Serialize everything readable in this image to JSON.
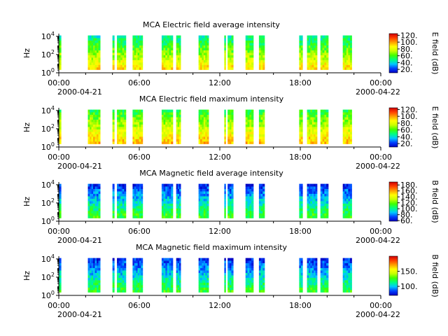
{
  "chart_data": [
    {
      "type": "heatmap",
      "title": "MCA  Electric field average intensity",
      "ylabel": "Hz",
      "y_scale": "log",
      "ylim": [
        1,
        20000
      ],
      "y_ticks": [
        "10^0",
        "10^2",
        "10^4"
      ],
      "x_ticks": [
        "00:00",
        "06:00",
        "12:00",
        "18:00",
        "00:00"
      ],
      "x_start_label": "2000-04-21",
      "x_end_label": "2000-04-22",
      "xlim": [
        "2000-04-21T00:00",
        "2000-04-22T00:00"
      ],
      "colorbar": {
        "label": "E field (dB)",
        "range": [
          10,
          125
        ],
        "ticks": [
          "20.",
          "40.",
          "60.",
          "80.",
          "100.",
          "120."
        ],
        "colors": [
          "#0000c0",
          "#0040ff",
          "#00c8ff",
          "#00ff80",
          "#40ff00",
          "#c8ff00",
          "#ffff00",
          "#ffa000",
          "#ff4000",
          "#d00000"
        ]
      },
      "data_intervals": [
        [
          "00:00",
          "00:10"
        ],
        [
          "02:10",
          "03:05"
        ],
        [
          "04:00",
          "04:08"
        ],
        [
          "04:20",
          "05:00"
        ],
        [
          "05:30",
          "06:15"
        ],
        [
          "07:40",
          "08:30"
        ],
        [
          "08:45",
          "09:05"
        ],
        [
          "10:25",
          "11:10"
        ],
        [
          "12:20",
          "12:25"
        ],
        [
          "12:35",
          "13:00"
        ],
        [
          "13:55",
          "14:30"
        ],
        [
          "14:55",
          "15:20"
        ],
        [
          "17:55",
          "18:10"
        ],
        [
          "18:30",
          "19:15"
        ],
        [
          "19:30",
          "20:05"
        ],
        [
          "21:10",
          "21:50"
        ]
      ],
      "spectrum_profile": {
        "low_freq_db": 90,
        "high_freq_db": 45
      }
    },
    {
      "type": "heatmap",
      "title": "MCA  Electric field maximum intensity",
      "ylabel": "Hz",
      "y_scale": "log",
      "ylim": [
        1,
        20000
      ],
      "y_ticks": [
        "10^0",
        "10^2",
        "10^4"
      ],
      "x_ticks": [
        "00:00",
        "06:00",
        "12:00",
        "18:00",
        "00:00"
      ],
      "x_start_label": "2000-04-21",
      "x_end_label": "2000-04-22",
      "xlim": [
        "2000-04-21T00:00",
        "2000-04-22T00:00"
      ],
      "colorbar": {
        "label": "E field (dB)",
        "range": [
          10,
          125
        ],
        "ticks": [
          "20.",
          "40.",
          "60.",
          "80.",
          "100.",
          "120."
        ],
        "colors": [
          "#0000c0",
          "#0040ff",
          "#00c8ff",
          "#00ff80",
          "#40ff00",
          "#c8ff00",
          "#ffff00",
          "#ffa000",
          "#ff4000",
          "#d00000"
        ]
      },
      "data_intervals": [
        [
          "00:00",
          "00:10"
        ],
        [
          "02:10",
          "03:05"
        ],
        [
          "04:00",
          "04:08"
        ],
        [
          "04:20",
          "05:00"
        ],
        [
          "05:30",
          "06:15"
        ],
        [
          "07:40",
          "08:30"
        ],
        [
          "08:45",
          "09:05"
        ],
        [
          "10:25",
          "11:10"
        ],
        [
          "12:20",
          "12:25"
        ],
        [
          "12:35",
          "13:00"
        ],
        [
          "13:55",
          "14:30"
        ],
        [
          "14:55",
          "15:20"
        ],
        [
          "17:55",
          "18:10"
        ],
        [
          "18:30",
          "19:15"
        ],
        [
          "19:30",
          "20:05"
        ],
        [
          "21:10",
          "21:50"
        ]
      ],
      "spectrum_profile": {
        "low_freq_db": 95,
        "high_freq_db": 55
      }
    },
    {
      "type": "heatmap",
      "title": "MCA  Magnetic field average intensity",
      "ylabel": "Hz",
      "y_scale": "log",
      "ylim": [
        1,
        20000
      ],
      "y_ticks": [
        "10^0",
        "10^2",
        "10^4"
      ],
      "x_ticks": [
        "00:00",
        "06:00",
        "12:00",
        "18:00",
        "00:00"
      ],
      "x_start_label": "2000-04-21",
      "x_end_label": "2000-04-22",
      "xlim": [
        "2000-04-21T00:00",
        "2000-04-22T00:00"
      ],
      "colorbar": {
        "label": "B field (dB)",
        "range": [
          58,
          190
        ],
        "ticks": [
          "60.",
          "80.",
          "100.",
          "120.",
          "140.",
          "160.",
          "180."
        ],
        "colors": [
          "#0000c0",
          "#0040ff",
          "#00c8ff",
          "#00ff80",
          "#40ff00",
          "#c8ff00",
          "#ffff00",
          "#ffa000",
          "#ff4000",
          "#d00000"
        ]
      },
      "data_intervals": [
        [
          "00:00",
          "00:10"
        ],
        [
          "02:10",
          "03:05"
        ],
        [
          "04:00",
          "04:08"
        ],
        [
          "04:20",
          "05:00"
        ],
        [
          "05:30",
          "06:15"
        ],
        [
          "07:40",
          "08:30"
        ],
        [
          "08:45",
          "09:05"
        ],
        [
          "10:25",
          "11:10"
        ],
        [
          "12:20",
          "12:25"
        ],
        [
          "12:35",
          "13:00"
        ],
        [
          "13:55",
          "14:30"
        ],
        [
          "14:55",
          "15:20"
        ],
        [
          "17:55",
          "18:10"
        ],
        [
          "18:30",
          "19:15"
        ],
        [
          "19:30",
          "20:05"
        ],
        [
          "21:10",
          "21:50"
        ]
      ],
      "spectrum_profile": {
        "low_freq_db": 115,
        "high_freq_db": 68
      }
    },
    {
      "type": "heatmap",
      "title": "MCA  Magnetic field maximum intensity",
      "ylabel": "Hz",
      "y_scale": "log",
      "ylim": [
        1,
        20000
      ],
      "y_ticks": [
        "10^0",
        "10^2",
        "10^4"
      ],
      "x_ticks": [
        "00:00",
        "06:00",
        "12:00",
        "18:00",
        "00:00"
      ],
      "x_start_label": "2000-04-21",
      "x_end_label": "2000-04-22",
      "xlim": [
        "2000-04-21T00:00",
        "2000-04-22T00:00"
      ],
      "colorbar": {
        "label": "B field (dB)",
        "range": [
          70,
          200
        ],
        "ticks": [
          "100.",
          "150."
        ],
        "colors": [
          "#0000c0",
          "#0040ff",
          "#00c8ff",
          "#00ff80",
          "#40ff00",
          "#c8ff00",
          "#ffff00",
          "#ffa000",
          "#ff4000",
          "#d00000"
        ]
      },
      "data_intervals": [
        [
          "00:00",
          "00:10"
        ],
        [
          "02:10",
          "03:05"
        ],
        [
          "04:00",
          "04:08"
        ],
        [
          "04:20",
          "05:00"
        ],
        [
          "05:30",
          "06:15"
        ],
        [
          "07:40",
          "08:30"
        ],
        [
          "08:45",
          "09:05"
        ],
        [
          "10:25",
          "11:10"
        ],
        [
          "12:20",
          "12:25"
        ],
        [
          "12:35",
          "13:00"
        ],
        [
          "13:55",
          "14:30"
        ],
        [
          "14:55",
          "15:20"
        ],
        [
          "17:55",
          "18:10"
        ],
        [
          "18:30",
          "19:15"
        ],
        [
          "19:30",
          "20:05"
        ],
        [
          "21:10",
          "21:50"
        ]
      ],
      "spectrum_profile": {
        "low_freq_db": 125,
        "high_freq_db": 80
      }
    }
  ]
}
